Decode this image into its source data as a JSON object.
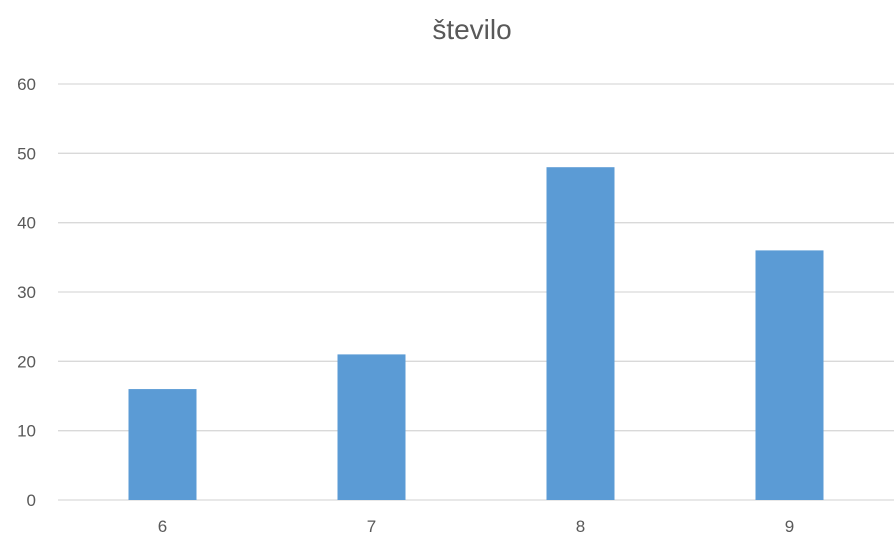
{
  "chart_data": {
    "type": "bar",
    "title": "število",
    "categories": [
      "6",
      "7",
      "8",
      "9"
    ],
    "values": [
      16,
      21,
      48,
      36
    ],
    "xlabel": "",
    "ylabel": "",
    "ylim": [
      0,
      60
    ],
    "yticks": [
      0,
      10,
      20,
      30,
      40,
      50,
      60
    ],
    "grid": true,
    "legend": "none",
    "bar_color": "#5B9BD5",
    "grid_color": "#D9D9D9"
  }
}
